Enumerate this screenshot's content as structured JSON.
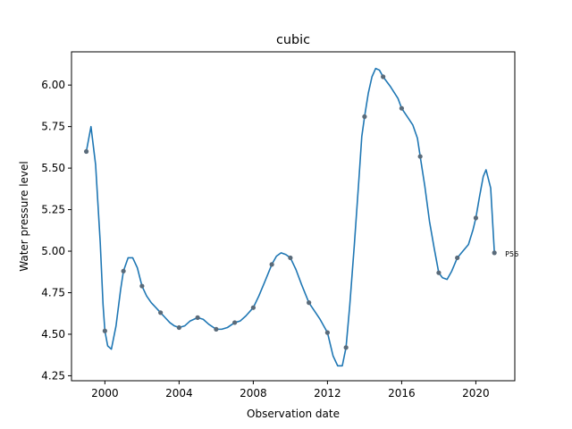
{
  "chart_data": {
    "type": "line",
    "title": "cubic",
    "xlabel": "Observation date",
    "ylabel": "Water pressure level",
    "xlim": [
      1998.2,
      2022.1
    ],
    "ylim": [
      4.22,
      6.2
    ],
    "xticks": [
      2000,
      2004,
      2008,
      2012,
      2016,
      2020
    ],
    "yticks": [
      4.25,
      4.5,
      4.75,
      5.0,
      5.25,
      5.5,
      5.75,
      6.0
    ],
    "ytick_labels": [
      "4.25",
      "4.50",
      "4.75",
      "5.00",
      "5.25",
      "5.50",
      "5.75",
      "6.00"
    ],
    "grid": false,
    "line_color": "#1f77b4",
    "point_color": "#5a6b7a",
    "series": [
      {
        "name": "P56",
        "points": [
          {
            "x": 1999,
            "y": 5.6
          },
          {
            "x": 2000,
            "y": 4.52
          },
          {
            "x": 2001,
            "y": 4.88
          },
          {
            "x": 2002,
            "y": 4.79
          },
          {
            "x": 2003,
            "y": 4.63
          },
          {
            "x": 2004,
            "y": 4.54
          },
          {
            "x": 2005,
            "y": 4.6
          },
          {
            "x": 2006,
            "y": 4.53
          },
          {
            "x": 2007,
            "y": 4.57
          },
          {
            "x": 2008,
            "y": 4.66
          },
          {
            "x": 2009,
            "y": 4.92
          },
          {
            "x": 2010,
            "y": 4.96
          },
          {
            "x": 2011,
            "y": 4.69
          },
          {
            "x": 2012,
            "y": 4.51
          },
          {
            "x": 2013,
            "y": 4.42
          },
          {
            "x": 2014,
            "y": 5.81
          },
          {
            "x": 2015,
            "y": 6.05
          },
          {
            "x": 2016,
            "y": 5.86
          },
          {
            "x": 2017,
            "y": 5.57
          },
          {
            "x": 2018,
            "y": 4.87
          },
          {
            "x": 2019,
            "y": 4.96
          },
          {
            "x": 2020,
            "y": 5.2
          },
          {
            "x": 2021,
            "y": 4.99
          }
        ],
        "curve": [
          [
            1999.0,
            5.6
          ],
          [
            1999.25,
            5.75
          ],
          [
            1999.5,
            5.52
          ],
          [
            1999.75,
            5.05
          ],
          [
            1999.9,
            4.68
          ],
          [
            2000.0,
            4.52
          ],
          [
            2000.15,
            4.43
          ],
          [
            2000.35,
            4.41
          ],
          [
            2000.6,
            4.55
          ],
          [
            2000.85,
            4.77
          ],
          [
            2001.0,
            4.88
          ],
          [
            2001.25,
            4.96
          ],
          [
            2001.5,
            4.96
          ],
          [
            2001.75,
            4.9
          ],
          [
            2002.0,
            4.79
          ],
          [
            2002.25,
            4.73
          ],
          [
            2002.5,
            4.69
          ],
          [
            2002.75,
            4.66
          ],
          [
            2003.0,
            4.63
          ],
          [
            2003.25,
            4.6
          ],
          [
            2003.5,
            4.57
          ],
          [
            2003.75,
            4.55
          ],
          [
            2004.0,
            4.54
          ],
          [
            2004.3,
            4.55
          ],
          [
            2004.6,
            4.58
          ],
          [
            2005.0,
            4.6
          ],
          [
            2005.3,
            4.59
          ],
          [
            2005.6,
            4.56
          ],
          [
            2006.0,
            4.53
          ],
          [
            2006.3,
            4.53
          ],
          [
            2006.6,
            4.54
          ],
          [
            2007.0,
            4.57
          ],
          [
            2007.3,
            4.58
          ],
          [
            2007.6,
            4.61
          ],
          [
            2008.0,
            4.66
          ],
          [
            2008.3,
            4.73
          ],
          [
            2008.6,
            4.81
          ],
          [
            2009.0,
            4.92
          ],
          [
            2009.25,
            4.97
          ],
          [
            2009.5,
            4.99
          ],
          [
            2009.75,
            4.98
          ],
          [
            2010.0,
            4.96
          ],
          [
            2010.3,
            4.89
          ],
          [
            2010.6,
            4.8
          ],
          [
            2011.0,
            4.69
          ],
          [
            2011.3,
            4.64
          ],
          [
            2011.6,
            4.59
          ],
          [
            2012.0,
            4.51
          ],
          [
            2012.3,
            4.37
          ],
          [
            2012.55,
            4.31
          ],
          [
            2012.8,
            4.31
          ],
          [
            2013.0,
            4.42
          ],
          [
            2013.2,
            4.67
          ],
          [
            2013.45,
            5.04
          ],
          [
            2013.7,
            5.44
          ],
          [
            2013.85,
            5.69
          ],
          [
            2014.0,
            5.81
          ],
          [
            2014.2,
            5.95
          ],
          [
            2014.4,
            6.05
          ],
          [
            2014.6,
            6.1
          ],
          [
            2014.8,
            6.09
          ],
          [
            2015.0,
            6.05
          ],
          [
            2015.4,
            5.99
          ],
          [
            2015.8,
            5.92
          ],
          [
            2016.0,
            5.86
          ],
          [
            2016.3,
            5.81
          ],
          [
            2016.6,
            5.76
          ],
          [
            2016.85,
            5.68
          ],
          [
            2017.0,
            5.57
          ],
          [
            2017.25,
            5.39
          ],
          [
            2017.5,
            5.18
          ],
          [
            2017.75,
            5.02
          ],
          [
            2018.0,
            4.87
          ],
          [
            2018.2,
            4.84
          ],
          [
            2018.45,
            4.83
          ],
          [
            2018.7,
            4.88
          ],
          [
            2019.0,
            4.96
          ],
          [
            2019.3,
            5.0
          ],
          [
            2019.6,
            5.04
          ],
          [
            2019.85,
            5.13
          ],
          [
            2020.0,
            5.2
          ],
          [
            2020.2,
            5.33
          ],
          [
            2020.4,
            5.45
          ],
          [
            2020.55,
            5.49
          ],
          [
            2020.8,
            5.38
          ],
          [
            2021.0,
            4.99
          ]
        ]
      }
    ],
    "annotations": [
      {
        "text": "P56",
        "x": 2021,
        "y": 4.99
      }
    ]
  }
}
